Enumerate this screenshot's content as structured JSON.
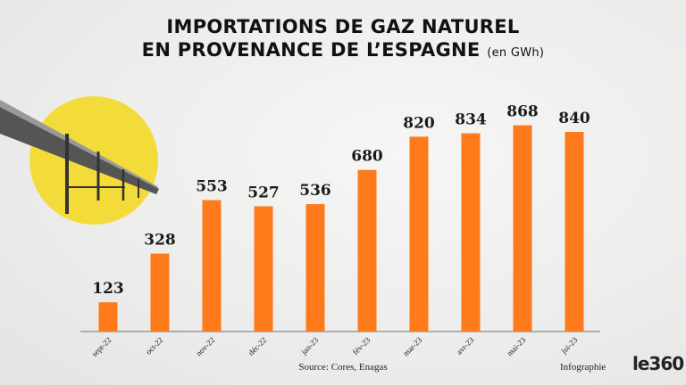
{
  "title_line1": "IMPORTATIONS DE GAZ NATUREL",
  "title_line2": "EN PROVENANCE DE L’ESPAGNE",
  "unit": "(en GWh)",
  "source": "Source: Cores, Enagas",
  "credit": "Infographie",
  "logo": "le360",
  "chart_data": {
    "type": "bar",
    "title": "IMPORTATIONS DE GAZ NATUREL EN PROVENANCE DE L’ESPAGNE (en GWh)",
    "categories": [
      "sept-22",
      "oct-22",
      "nov-22",
      "déc-22",
      "jan-23",
      "fév-23",
      "mar-23",
      "avr-23",
      "mai-23",
      "jui-23"
    ],
    "values": [
      123,
      328,
      553,
      527,
      536,
      680,
      820,
      834,
      868,
      840
    ],
    "bar_color": "#ff7a1a",
    "grid": false,
    "ylim": [
      0,
      900
    ]
  }
}
